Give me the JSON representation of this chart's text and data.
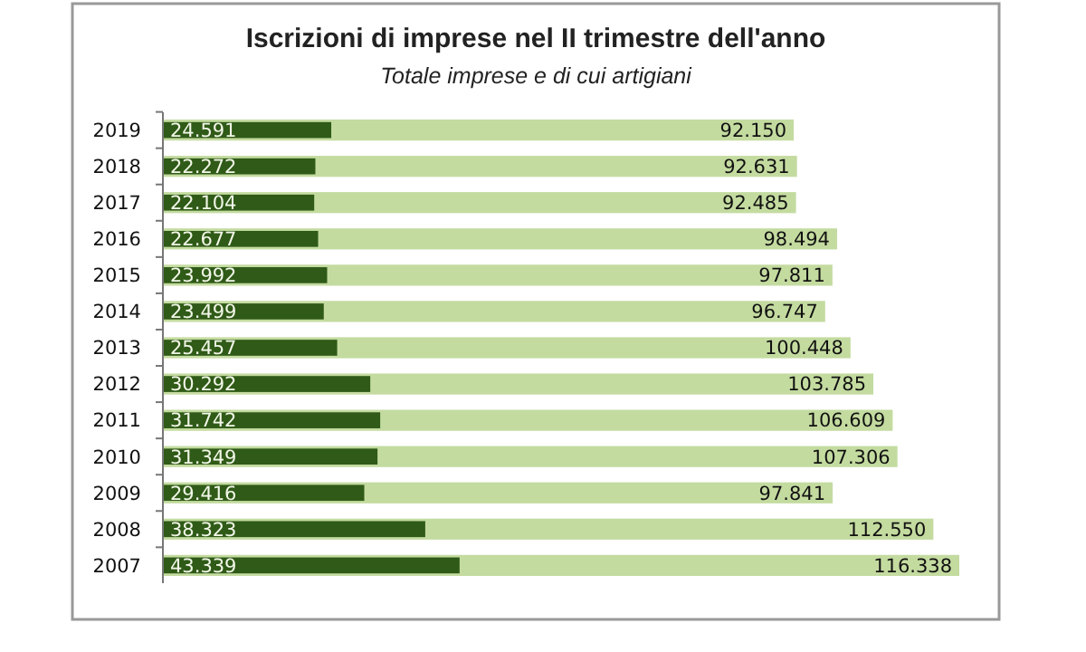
{
  "chart_data": {
    "type": "bar",
    "orientation": "horizontal",
    "title": "Iscrizioni di imprese nel II trimestre dell'anno",
    "subtitle": "Totale imprese e di cui artigiani",
    "categories": [
      "2019",
      "2018",
      "2017",
      "2016",
      "2015",
      "2014",
      "2013",
      "2012",
      "2011",
      "2010",
      "2009",
      "2008",
      "2007"
    ],
    "series": [
      {
        "color": "#c4dba0",
        "values": [
          92150,
          92631,
          92485,
          98494,
          97811,
          96747,
          100448,
          103785,
          106609,
          107306,
          97841,
          112550,
          116338
        ],
        "value_labels": [
          "92.150",
          "92.631",
          "92.485",
          "98.494",
          "97.811",
          "96.747",
          "100.448",
          "103.785",
          "106.609",
          "107.306",
          "97.841",
          "112.550",
          "116.338"
        ]
      },
      {
        "color": "#2f5a17",
        "values": [
          24591,
          22272,
          22104,
          22677,
          23992,
          23499,
          25457,
          30292,
          31742,
          31349,
          29416,
          38323,
          43339
        ],
        "value_labels": [
          "24.591",
          "22.272",
          "22.104",
          "22.677",
          "23.992",
          "23.499",
          "25.457",
          "30.292",
          "31.742",
          "31.349",
          "29.416",
          "38.323",
          "43.339"
        ]
      }
    ]
  }
}
